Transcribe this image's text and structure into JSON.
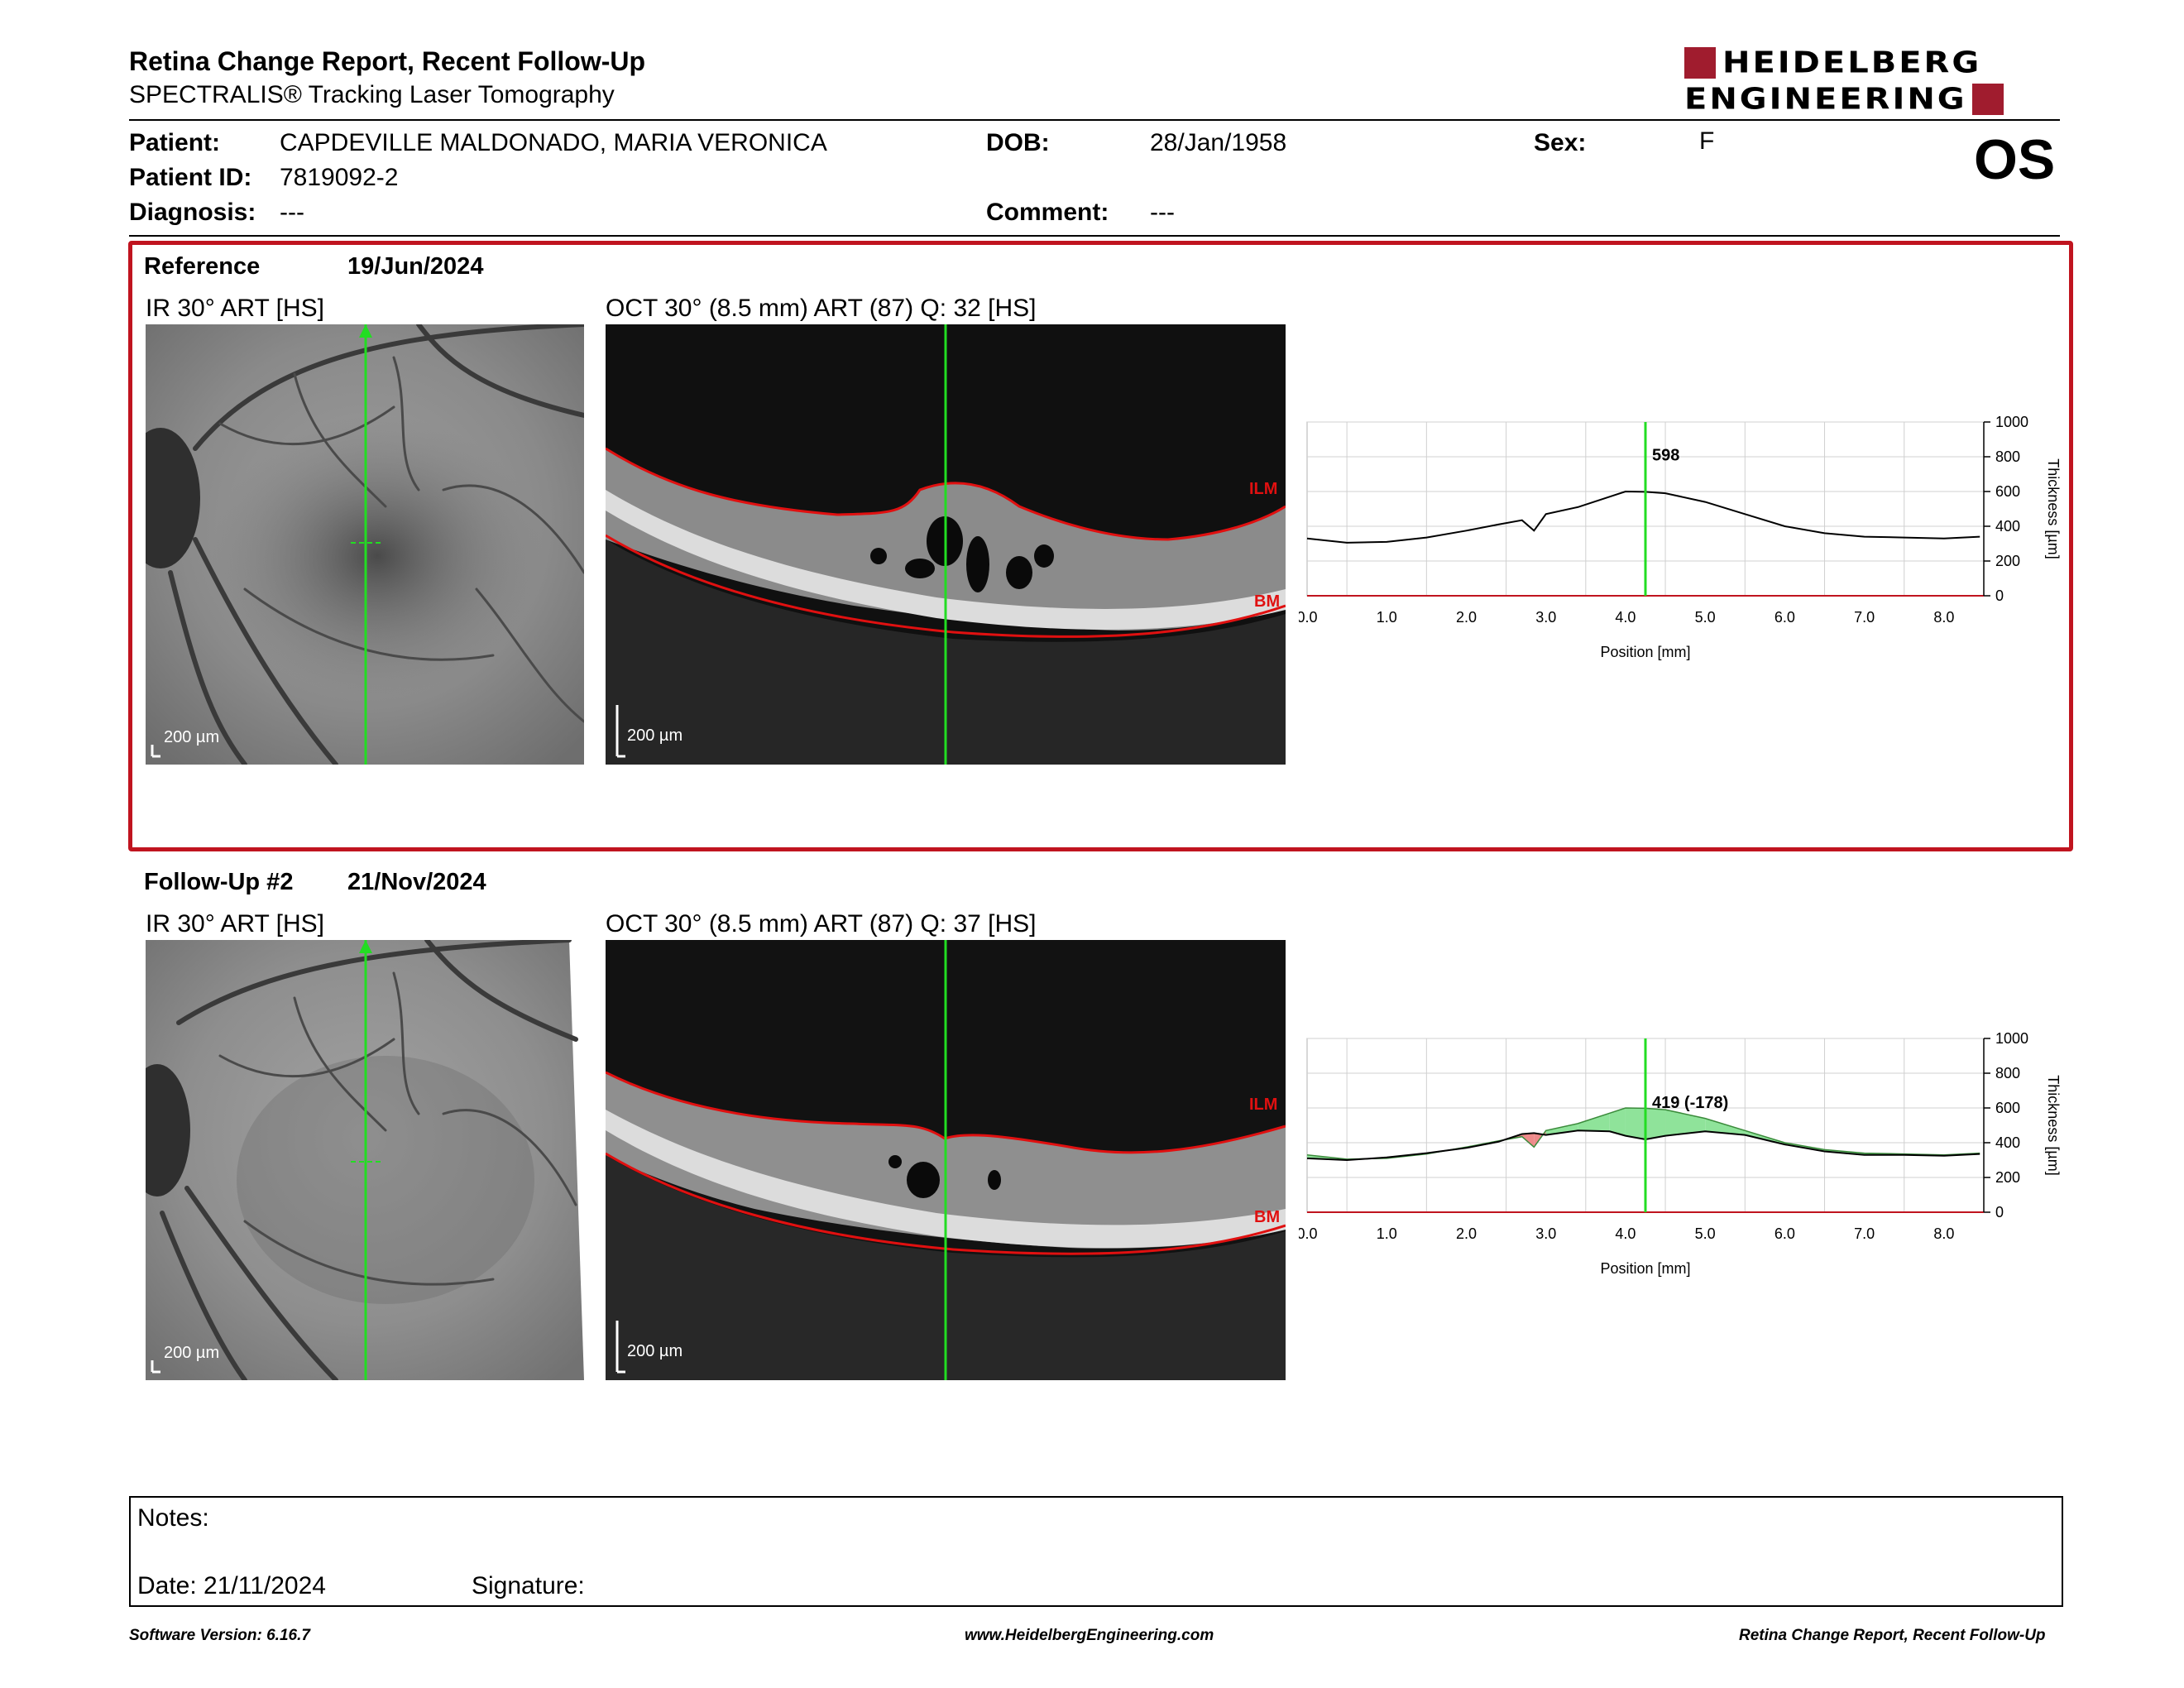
{
  "header": {
    "title": "Retina Change Report, Recent Follow-Up",
    "subtitle": "SPECTRALIS® Tracking Laser Tomography",
    "logo_line1": "HEIDELBERG",
    "logo_line2": "ENGINEERING",
    "eye": "OS"
  },
  "patient": {
    "patient_label": "Patient:",
    "patient_value": "CAPDEVILLE MALDONADO, MARIA VERONICA",
    "id_label": "Patient ID:",
    "id_value": "7819092-2",
    "diagnosis_label": "Diagnosis:",
    "diagnosis_value": "---",
    "dob_label": "DOB:",
    "dob_value": "28/Jan/1958",
    "comment_label": "Comment:",
    "comment_value": "---",
    "sex_label": "Sex:",
    "sex_value": "F"
  },
  "reference": {
    "label": "Reference",
    "date": "19/Jun/2024",
    "ir_caption": "IR 30° ART [HS]",
    "oct_caption": "OCT 30° (8.5 mm) ART (87) Q: 32 [HS]",
    "ir_scale": "200 µm",
    "oct_scale": "200 µm",
    "ilm": "ILM",
    "bm": "BM"
  },
  "followup": {
    "label": "Follow-Up #2",
    "date": "21/Nov/2024",
    "ir_caption": "IR 30° ART [HS]",
    "oct_caption": "OCT 30° (8.5 mm) ART (87) Q: 37 [HS]",
    "ir_scale": "200 µm",
    "oct_scale": "200 µm",
    "ilm": "ILM",
    "bm": "BM"
  },
  "chart_data": [
    {
      "type": "line",
      "xlabel": "Position [mm]",
      "ylabel": "Thickness [µm]",
      "xlim": [
        0,
        8.5
      ],
      "ylim": [
        0,
        1000
      ],
      "x_ticks": [
        "0.0",
        "1.0",
        "2.0",
        "3.0",
        "4.0",
        "5.0",
        "6.0",
        "7.0",
        "8.0"
      ],
      "y_ticks": [
        "0",
        "200",
        "400",
        "600",
        "800",
        "1000"
      ],
      "grid": true,
      "marker_x": 4.25,
      "marker_label": "598",
      "x": [
        0,
        0.5,
        1.0,
        1.5,
        2.0,
        2.4,
        2.7,
        2.85,
        3.0,
        3.4,
        3.8,
        4.0,
        4.25,
        4.5,
        5.0,
        5.5,
        6.0,
        6.5,
        7.0,
        7.5,
        8.0,
        8.45
      ],
      "series": [
        {
          "color": "#000000",
          "values": [
            330,
            305,
            310,
            335,
            375,
            410,
            435,
            375,
            470,
            510,
            570,
            600,
            598,
            590,
            540,
            470,
            400,
            360,
            340,
            335,
            330,
            340
          ]
        }
      ]
    },
    {
      "type": "line",
      "xlabel": "Position [mm]",
      "ylabel": "Thickness [µm]",
      "xlim": [
        0,
        8.5
      ],
      "ylim": [
        0,
        1000
      ],
      "x_ticks": [
        "0.0",
        "1.0",
        "2.0",
        "3.0",
        "4.0",
        "5.0",
        "6.0",
        "7.0",
        "8.0"
      ],
      "y_ticks": [
        "0",
        "200",
        "400",
        "600",
        "800",
        "1000"
      ],
      "grid": true,
      "marker_x": 4.25,
      "marker_label": "419 (-178)",
      "increase_color": "#ee8a8a",
      "decrease_color": "#8fe39a",
      "x": [
        0,
        0.5,
        1.0,
        1.5,
        2.0,
        2.4,
        2.7,
        2.85,
        3.0,
        3.4,
        3.8,
        4.0,
        4.25,
        4.5,
        5.0,
        5.5,
        6.0,
        6.5,
        7.0,
        7.5,
        8.0,
        8.45
      ],
      "series": [
        {
          "color": "#000000",
          "values": [
            310,
            300,
            315,
            340,
            370,
            405,
            450,
            455,
            445,
            470,
            465,
            440,
            419,
            440,
            465,
            445,
            390,
            350,
            330,
            330,
            325,
            335
          ]
        },
        {
          "color": "#3a8a3a",
          "values": [
            330,
            305,
            310,
            335,
            375,
            410,
            435,
            375,
            470,
            510,
            570,
            600,
            598,
            590,
            540,
            470,
            400,
            360,
            340,
            335,
            330,
            340
          ]
        }
      ]
    }
  ],
  "notes": {
    "label": "Notes:",
    "date_label": "Date: 21/11/2024",
    "signature_label": "Signature:"
  },
  "footer": {
    "left": "Software Version: 6.16.7",
    "center": "www.HeidelbergEngineering.com",
    "right": "Retina Change Report, Recent Follow-Up"
  }
}
